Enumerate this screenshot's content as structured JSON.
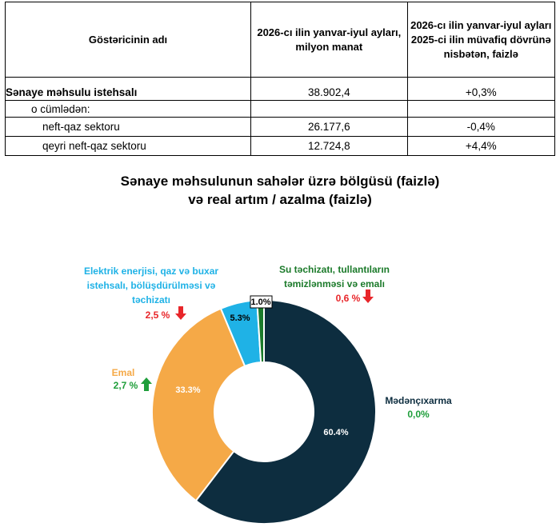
{
  "table": {
    "headers": [
      "Göstəricinin adı",
      "2026-cı ilin yanvar-iyul ayları, milyon manat",
      "2026-cı ilin yanvar-iyul ayları 2025-ci ilin müvafiq dövrünə nisbətən, faizlə"
    ],
    "rows": [
      {
        "label": "Sənaye məhsulu istehsalı",
        "value": "38.902,4",
        "change": "+0,3%"
      },
      {
        "label": "o cümlədən:",
        "value": "",
        "change": ""
      },
      {
        "label": "neft-qaz sektoru",
        "value": "26.177,6",
        "change": "-0,4%"
      },
      {
        "label": "qeyri neft-qaz sektoru",
        "value": "12.724,8",
        "change": "+4,4%"
      }
    ]
  },
  "chart_data": {
    "type": "pie",
    "title": "Sənaye məhsulunun sahələr üzrə bölgüsü (faizlə)\nvə real artım / azalma (faizlə)",
    "slices": [
      {
        "name": "Mədənçıxarma",
        "value": 60.4,
        "label": "60.4%",
        "change": "0,0%",
        "direction": "none",
        "color": "#0d2d3f"
      },
      {
        "name": "Emal",
        "value": 33.3,
        "label": "33.3%",
        "change": "2,7 %",
        "direction": "up",
        "color": "#f5a947"
      },
      {
        "name": "Elektrik enerjisi, qaz və buxar istehsalı, bölüşdürülməsi və təchizatı",
        "value": 5.3,
        "label": "5.3%",
        "change": "2,5 %",
        "direction": "down",
        "color": "#1fb2e6"
      },
      {
        "name": "Su təchizatı, tullantıların təmizlənməsi və emalı",
        "value": 1.0,
        "label": "1.0%",
        "change": "0,6 %",
        "direction": "down",
        "color": "#1b7a2a"
      }
    ]
  },
  "colors": {
    "up": "#1e9e3a",
    "down": "#e8262a",
    "dark_label": "#0d2d3f",
    "emal_label": "#f5a947",
    "electric_label": "#1fb2e6",
    "water_label": "#1b7a2a",
    "zero_change": "#1e9e3a"
  }
}
